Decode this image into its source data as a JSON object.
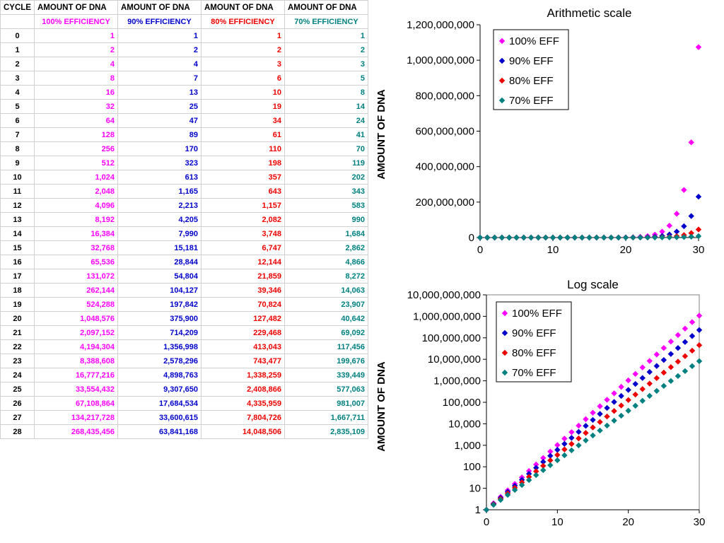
{
  "table": {
    "header": [
      "CYCLE",
      "AMOUNT OF DNA",
      "AMOUNT OF DNA",
      "AMOUNT OF DNA",
      "AMOUNT OF DNA"
    ],
    "subheader": [
      "",
      "100% EFFICIENCY",
      "90% EFFICIENCY",
      "80% EFFICIENCY",
      "70% EFFICIENCY"
    ],
    "rows": [
      [
        "0",
        "1",
        "1",
        "1",
        "1"
      ],
      [
        "1",
        "2",
        "2",
        "2",
        "2"
      ],
      [
        "2",
        "4",
        "4",
        "3",
        "3"
      ],
      [
        "3",
        "8",
        "7",
        "6",
        "5"
      ],
      [
        "4",
        "16",
        "13",
        "10",
        "8"
      ],
      [
        "5",
        "32",
        "25",
        "19",
        "14"
      ],
      [
        "6",
        "64",
        "47",
        "34",
        "24"
      ],
      [
        "7",
        "128",
        "89",
        "61",
        "41"
      ],
      [
        "8",
        "256",
        "170",
        "110",
        "70"
      ],
      [
        "9",
        "512",
        "323",
        "198",
        "119"
      ],
      [
        "10",
        "1,024",
        "613",
        "357",
        "202"
      ],
      [
        "11",
        "2,048",
        "1,165",
        "643",
        "343"
      ],
      [
        "12",
        "4,096",
        "2,213",
        "1,157",
        "583"
      ],
      [
        "13",
        "8,192",
        "4,205",
        "2,082",
        "990"
      ],
      [
        "14",
        "16,384",
        "7,990",
        "3,748",
        "1,684"
      ],
      [
        "15",
        "32,768",
        "15,181",
        "6,747",
        "2,862"
      ],
      [
        "16",
        "65,536",
        "28,844",
        "12,144",
        "4,866"
      ],
      [
        "17",
        "131,072",
        "54,804",
        "21,859",
        "8,272"
      ],
      [
        "18",
        "262,144",
        "104,127",
        "39,346",
        "14,063"
      ],
      [
        "19",
        "524,288",
        "197,842",
        "70,824",
        "23,907"
      ],
      [
        "20",
        "1,048,576",
        "375,900",
        "127,482",
        "40,642"
      ],
      [
        "21",
        "2,097,152",
        "714,209",
        "229,468",
        "69,092"
      ],
      [
        "22",
        "4,194,304",
        "1,356,998",
        "413,043",
        "117,456"
      ],
      [
        "23",
        "8,388,608",
        "2,578,296",
        "743,477",
        "199,676"
      ],
      [
        "24",
        "16,777,216",
        "4,898,763",
        "1,338,259",
        "339,449"
      ],
      [
        "25",
        "33,554,432",
        "9,307,650",
        "2,408,866",
        "577,063"
      ],
      [
        "26",
        "67,108,864",
        "17,684,534",
        "4,335,959",
        "981,007"
      ],
      [
        "27",
        "134,217,728",
        "33,600,615",
        "7,804,726",
        "1,667,711"
      ],
      [
        "28",
        "268,435,456",
        "63,841,168",
        "14,048,506",
        "2,835,109"
      ]
    ]
  },
  "colors": {
    "eff100": "#ff00ff",
    "eff90": "#0000cc",
    "eff80": "#ee0000",
    "eff70": "#008080"
  },
  "chart_data": [
    {
      "type": "scatter",
      "title": "Arithmetic scale",
      "xlabel": "",
      "ylabel": "AMOUNT OF DNA",
      "xlim": [
        0,
        30
      ],
      "ylim": [
        0,
        1200000000
      ],
      "xticks": [
        "0",
        "10",
        "20",
        "30"
      ],
      "yticks": [
        "0",
        "200,000,000",
        "400,000,000",
        "600,000,000",
        "800,000,000",
        "1,000,000,000",
        "1,200,000,000"
      ],
      "log_scale_y": false,
      "legend_position": "top-left",
      "series": [
        {
          "name": "100% EFF",
          "efficiency": 1.0
        },
        {
          "name": "90% EFF",
          "efficiency": 0.9
        },
        {
          "name": "80% EFF",
          "efficiency": 0.8
        },
        {
          "name": "70% EFF",
          "efficiency": 0.7
        }
      ],
      "x": [
        0,
        1,
        2,
        3,
        4,
        5,
        6,
        7,
        8,
        9,
        10,
        11,
        12,
        13,
        14,
        15,
        16,
        17,
        18,
        19,
        20,
        21,
        22,
        23,
        24,
        25,
        26,
        27,
        28,
        29,
        30
      ]
    },
    {
      "type": "scatter",
      "title": "Log scale",
      "xlabel": "",
      "ylabel": "AMOUNT OF DNA",
      "xlim": [
        0,
        30
      ],
      "ylim": [
        1,
        10000000000
      ],
      "xticks": [
        "0",
        "10",
        "20",
        "30"
      ],
      "yticks": [
        "1",
        "10",
        "100",
        "1,000",
        "10,000",
        "100,000",
        "1,000,000",
        "10,000,000",
        "100,000,000",
        "1,000,000,000",
        "10,000,000,000"
      ],
      "log_scale_y": true,
      "legend_position": "top-left",
      "series": [
        {
          "name": "100% EFF",
          "efficiency": 1.0
        },
        {
          "name": "90% EFF",
          "efficiency": 0.9
        },
        {
          "name": "80% EFF",
          "efficiency": 0.8
        },
        {
          "name": "70% EFF",
          "efficiency": 0.7
        }
      ],
      "x": [
        0,
        1,
        2,
        3,
        4,
        5,
        6,
        7,
        8,
        9,
        10,
        11,
        12,
        13,
        14,
        15,
        16,
        17,
        18,
        19,
        20,
        21,
        22,
        23,
        24,
        25,
        26,
        27,
        28,
        29,
        30
      ]
    }
  ]
}
